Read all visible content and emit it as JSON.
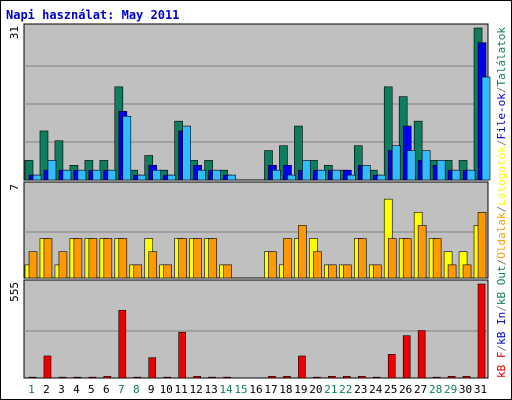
{
  "chart_data": {
    "type": "bar",
    "title": "Napi használat: May 2011",
    "days": [
      "1",
      "2",
      "3",
      "4",
      "5",
      "6",
      "7",
      "8",
      "9",
      "10",
      "11",
      "12",
      "13",
      "14",
      "15",
      "16",
      "17",
      "18",
      "19",
      "20",
      "21",
      "22",
      "23",
      "24",
      "25",
      "26",
      "27",
      "28",
      "29",
      "30",
      "31"
    ],
    "weekend_days": [
      "1",
      "7",
      "8",
      "14",
      "15",
      "21",
      "22",
      "28",
      "29"
    ],
    "panels": [
      {
        "name": "hits",
        "ymax_label": "31",
        "ymax": 31,
        "series": [
          {
            "name": "Találatok",
            "color": "#0f7e5e",
            "values": [
              4,
              10,
              8,
              3,
              4,
              4,
              19,
              2,
              5,
              2,
              12,
              4,
              4,
              2,
              0,
              0,
              6,
              7,
              11,
              4,
              3,
              2,
              7,
              2,
              19,
              17,
              12,
              4,
              4,
              4,
              31
            ]
          },
          {
            "name": "File-ok",
            "color": "#0000ee",
            "values": [
              1,
              2,
              2,
              2,
              2,
              2,
              14,
              1,
              3,
              1,
              10,
              3,
              2,
              1,
              0,
              0,
              3,
              3,
              2,
              2,
              2,
              2,
              3,
              1,
              6,
              11,
              4,
              3,
              2,
              2,
              28
            ]
          },
          {
            "name": "Lapok",
            "color": "#33bbff",
            "values": [
              1,
              4,
              2,
              2,
              2,
              2,
              13,
              1,
              2,
              1,
              11,
              2,
              2,
              1,
              0,
              0,
              2,
              1,
              4,
              2,
              2,
              1,
              3,
              1,
              7,
              6,
              6,
              4,
              2,
              2,
              21
            ]
          }
        ]
      },
      {
        "name": "visits",
        "ymax_label": "7",
        "ymax": 7,
        "series": [
          {
            "name": "Látogatók",
            "color": "#ffff00",
            "values": [
              1,
              3,
              1,
              3,
              3,
              3,
              3,
              1,
              3,
              1,
              3,
              3,
              3,
              1,
              0,
              0,
              2,
              1,
              3,
              3,
              1,
              1,
              3,
              1,
              6,
              3,
              5,
              3,
              2,
              2,
              4
            ]
          },
          {
            "name": "Oldalak",
            "color": "#ff9900",
            "values": [
              2,
              3,
              2,
              3,
              3,
              3,
              3,
              1,
              2,
              1,
              3,
              3,
              3,
              1,
              0,
              0,
              2,
              3,
              4,
              2,
              1,
              1,
              3,
              1,
              3,
              3,
              4,
              3,
              1,
              1,
              5
            ]
          }
        ]
      },
      {
        "name": "kbytes",
        "ymax_label": "555",
        "ymax": 555,
        "series": [
          {
            "name": "kB F",
            "color": "#ee0000",
            "values": [
              5,
              130,
              5,
              5,
              5,
              10,
              400,
              5,
              120,
              5,
              270,
              10,
              5,
              5,
              0,
              0,
              10,
              10,
              130,
              5,
              10,
              10,
              10,
              5,
              140,
              250,
              280,
              5,
              10,
              10,
              555
            ]
          }
        ]
      }
    ],
    "legend": [
      {
        "label": "kB F",
        "color": "#ee0000"
      },
      {
        "label": "/",
        "color": "#808080"
      },
      {
        "label": "kB In",
        "color": "#0000cc"
      },
      {
        "label": "/",
        "color": "#808080"
      },
      {
        "label": "kB Out",
        "color": "#0f7e5e"
      },
      {
        "label": "/",
        "color": "#808080"
      },
      {
        "label": "Oldalak",
        "color": "#ff9900"
      },
      {
        "label": "/",
        "color": "#808080"
      },
      {
        "label": "Látogatók",
        "color": "#ffff00"
      },
      {
        "label": "/",
        "color": "#808080"
      },
      {
        "label": "File-ok",
        "color": "#0000cc"
      },
      {
        "label": "/",
        "color": "#808080"
      },
      {
        "label": "Találatok",
        "color": "#0f7e5e"
      }
    ],
    "colors": {
      "panel_bg": "#c0c0c0",
      "gridline": "#808080",
      "weekday_label": "#000000",
      "weekend_label": "#0f7e5e"
    }
  }
}
